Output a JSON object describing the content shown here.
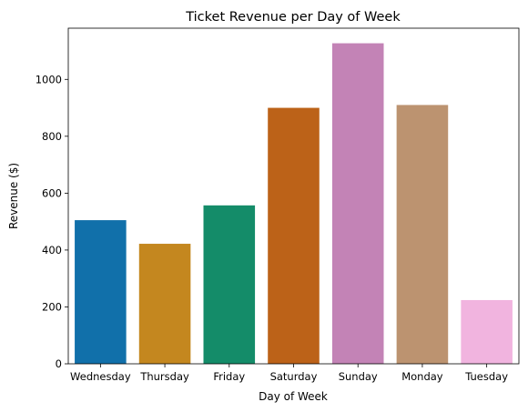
{
  "chart_data": {
    "type": "bar",
    "title": "Ticket Revenue per Day of Week",
    "xlabel": "Day of Week",
    "ylabel": "Revenue ($)",
    "categories": [
      "Wednesday",
      "Thursday",
      "Friday",
      "Saturday",
      "Sunday",
      "Monday",
      "Tuesday"
    ],
    "values": [
      505,
      422,
      557,
      900,
      1127,
      910,
      224
    ],
    "colors": [
      "#1170aa",
      "#c4871f",
      "#148c69",
      "#bc6218",
      "#c383b6",
      "#bc9370",
      "#f1b4df"
    ],
    "ylim": [
      0,
      1180
    ],
    "yticks": [
      0,
      200,
      400,
      600,
      800,
      1000
    ],
    "grid": false,
    "legend": "none"
  }
}
